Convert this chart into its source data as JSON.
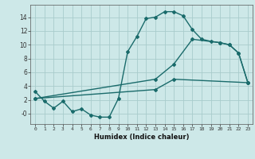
{
  "xlabel": "Humidex (Indice chaleur)",
  "bg_color": "#cde8e8",
  "grid_color": "#a8cccc",
  "line_color": "#1a6b6b",
  "xlim": [
    -0.5,
    23.5
  ],
  "ylim": [
    -1.5,
    15.8
  ],
  "xticks": [
    0,
    1,
    2,
    3,
    4,
    5,
    6,
    7,
    8,
    9,
    10,
    11,
    12,
    13,
    14,
    15,
    16,
    17,
    18,
    19,
    20,
    21,
    22,
    23
  ],
  "yticks": [
    0,
    2,
    4,
    6,
    8,
    10,
    12,
    14
  ],
  "ytick_labels": [
    "-0",
    "2",
    "4",
    "6",
    "8",
    "10",
    "12",
    "14"
  ],
  "curve1_x": [
    0,
    1,
    2,
    3,
    4,
    5,
    6,
    7,
    8,
    9,
    10,
    11,
    12,
    13,
    14,
    15,
    16,
    17,
    18,
    19,
    20,
    21,
    22,
    23
  ],
  "curve1_y": [
    3.2,
    1.8,
    0.8,
    1.8,
    0.3,
    0.7,
    -0.2,
    -0.5,
    -0.5,
    2.2,
    9.0,
    11.2,
    13.8,
    14.0,
    14.8,
    14.8,
    14.2,
    12.2,
    10.8,
    10.5,
    10.3,
    10.0,
    8.8,
    4.5
  ],
  "curve2_x": [
    0,
    13,
    15,
    17,
    20,
    21,
    22,
    23
  ],
  "curve2_y": [
    2.2,
    5.0,
    7.2,
    10.8,
    10.3,
    10.0,
    8.8,
    4.5
  ],
  "curve3_x": [
    0,
    13,
    15,
    23
  ],
  "curve3_y": [
    2.2,
    3.5,
    5.0,
    4.5
  ],
  "marker": "D",
  "markersize": 2.0,
  "linewidth": 1.0
}
